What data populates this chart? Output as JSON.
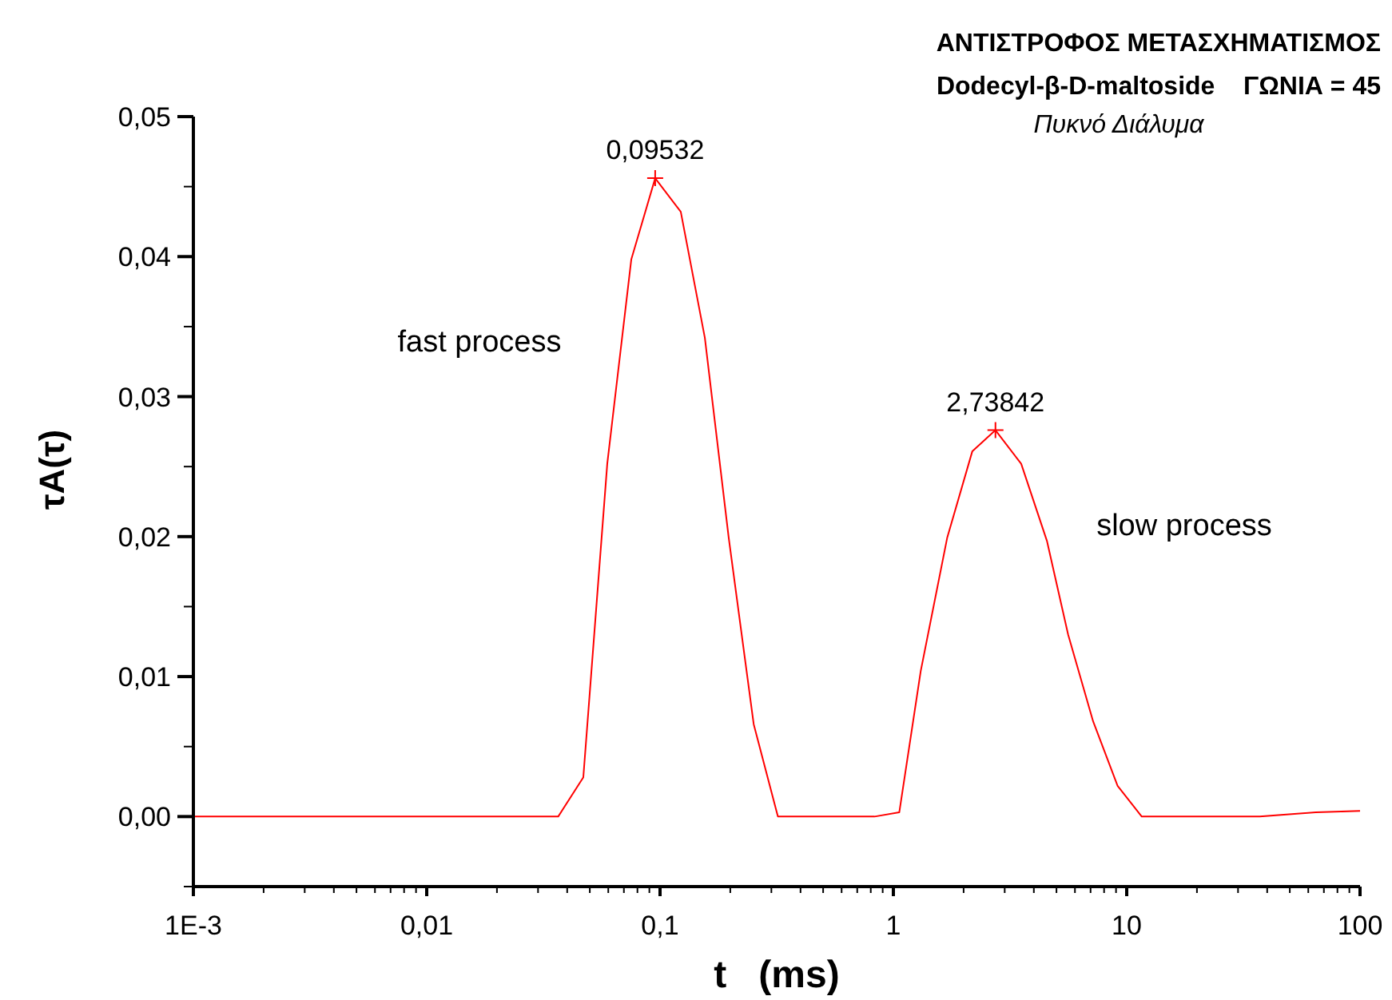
{
  "chart_data": {
    "type": "line",
    "title": "ΑΝΤΙΣΤΡΟΦΟΣ ΜΕΤΑΣΧΗΜΑΤΙΣΜΟΣ",
    "subtitle": "Dodecyl-β-D-maltoside    ΓΩΝΙΑ = 45",
    "xlabel": "t   (ms)",
    "ylabel": "τA(τ)",
    "annotations": [
      "Πυκνό Διάλυμα",
      "fast process",
      "slow process",
      {
        "text": "0,09532",
        "x": 0.09532,
        "y": 0.0456
      },
      {
        "text": "2,73842",
        "x": 2.73842,
        "y": 0.0276
      }
    ],
    "log": "x",
    "grid": false,
    "xlim": [
      0.001,
      100
    ],
    "ylim": [
      -0.005,
      0.05
    ],
    "xticks": [
      {
        "value": 0.001,
        "label": "1E-3"
      },
      {
        "value": 0.002,
        "label": null
      },
      {
        "value": 0.003,
        "label": null
      },
      {
        "value": 0.004,
        "label": null
      },
      {
        "value": 0.005,
        "label": null
      },
      {
        "value": 0.006,
        "label": null
      },
      {
        "value": 0.007,
        "label": null
      },
      {
        "value": 0.008,
        "label": null
      },
      {
        "value": 0.009,
        "label": null
      },
      {
        "value": 0.01,
        "label": "0,01"
      },
      {
        "value": 0.02,
        "label": null
      },
      {
        "value": 0.03,
        "label": null
      },
      {
        "value": 0.04,
        "label": null
      },
      {
        "value": 0.05,
        "label": null
      },
      {
        "value": 0.06,
        "label": null
      },
      {
        "value": 0.07,
        "label": null
      },
      {
        "value": 0.08,
        "label": null
      },
      {
        "value": 0.09,
        "label": null
      },
      {
        "value": 0.1,
        "label": "0,1"
      },
      {
        "value": 0.2,
        "label": null
      },
      {
        "value": 0.3,
        "label": null
      },
      {
        "value": 0.4,
        "label": null
      },
      {
        "value": 0.5,
        "label": null
      },
      {
        "value": 0.6,
        "label": null
      },
      {
        "value": 0.7,
        "label": null
      },
      {
        "value": 0.8,
        "label": null
      },
      {
        "value": 0.9,
        "label": null
      },
      1,
      {
        "value": 2,
        "label": null
      },
      {
        "value": 3,
        "label": null
      },
      {
        "value": 4,
        "label": null
      },
      {
        "value": 5,
        "label": null
      },
      {
        "value": 6,
        "label": null
      },
      {
        "value": 7,
        "label": null
      },
      {
        "value": 8,
        "label": null
      },
      {
        "value": 9,
        "label": null
      },
      10,
      {
        "value": 20,
        "label": null
      },
      {
        "value": 30,
        "label": null
      },
      {
        "value": 40,
        "label": null
      },
      {
        "value": 50,
        "label": null
      },
      {
        "value": 60,
        "label": null
      },
      {
        "value": 70,
        "label": null
      },
      {
        "value": 80,
        "label": null
      },
      {
        "value": 90,
        "label": null
      },
      100
    ],
    "yticks": [
      {
        "value": -0.005,
        "label": null
      },
      {
        "value": 0,
        "label": "0,00"
      },
      {
        "value": 0.005,
        "label": null
      },
      {
        "value": 0.01,
        "label": "0,01"
      },
      {
        "value": 0.015,
        "label": null
      },
      {
        "value": 0.02,
        "label": "0,02"
      },
      {
        "value": 0.025,
        "label": null
      },
      {
        "value": 0.03,
        "label": "0,03"
      },
      {
        "value": 0.035,
        "label": null
      },
      {
        "value": 0.04,
        "label": "0,04"
      },
      {
        "value": 0.045,
        "label": null
      },
      {
        "value": 0.05,
        "label": "0,05"
      }
    ],
    "series": [
      {
        "color": "#ff0000",
        "marker": "none",
        "line_style": "solid",
        "x": [
          0.001,
          0.0366,
          0.0469,
          0.0594,
          0.0753,
          0.09532,
          0.1227,
          0.1556,
          0.197,
          0.252,
          0.32,
          0.83,
          1.06,
          1.31,
          1.7,
          2.18,
          2.73842,
          3.53,
          4.55,
          5.61,
          7.18,
          9.14,
          11.6,
          37.2,
          64.6,
          100
        ],
        "values": [
          0,
          0,
          0.0028,
          0.0252,
          0.0398,
          0.0456,
          0.0432,
          0.0342,
          0.0199,
          0.0066,
          0,
          0,
          0.0003,
          0.0104,
          0.0199,
          0.0261,
          0.0276,
          0.0252,
          0.0197,
          0.013,
          0.0068,
          0.0022,
          0,
          0,
          0.0003,
          0.0004
        ]
      },
      {
        "type": "scatter",
        "color": "#ff0000",
        "marker": "cross",
        "x": [
          0.09532,
          2.73842
        ],
        "values": [
          0.0456,
          0.0276
        ]
      }
    ]
  }
}
